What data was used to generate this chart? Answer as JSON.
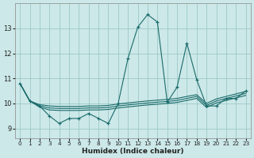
{
  "xlabel": "Humidex (Indice chaleur)",
  "bg_color": "#cce8e8",
  "grid_color": "#9dc8c8",
  "line_color": "#1a6b6b",
  "xlim": [
    -0.5,
    23.5
  ],
  "ylim": [
    8.6,
    14.0
  ],
  "yticks": [
    9,
    10,
    11,
    12,
    13
  ],
  "xticks": [
    0,
    1,
    2,
    3,
    4,
    5,
    6,
    7,
    8,
    9,
    10,
    11,
    12,
    13,
    14,
    15,
    16,
    17,
    18,
    19,
    20,
    21,
    22,
    23
  ],
  "main_x": [
    0,
    1,
    2,
    3,
    4,
    5,
    6,
    7,
    8,
    9,
    10,
    11,
    12,
    13,
    14,
    15,
    16,
    17,
    18,
    19,
    20,
    21,
    22,
    23
  ],
  "main_y": [
    10.8,
    10.1,
    9.9,
    9.5,
    9.2,
    9.4,
    9.4,
    9.6,
    9.4,
    9.2,
    10.0,
    11.8,
    13.05,
    13.55,
    13.25,
    10.05,
    10.65,
    12.4,
    10.95,
    9.9,
    9.9,
    10.2,
    10.2,
    10.5
  ],
  "smooth1_x": [
    0,
    1,
    2,
    3,
    4,
    5,
    6,
    7,
    8,
    9,
    10,
    11,
    12,
    13,
    14,
    15,
    16,
    17,
    18,
    19,
    20,
    21,
    22,
    23
  ],
  "smooth1_y": [
    10.8,
    10.1,
    9.95,
    9.9,
    9.88,
    9.88,
    9.88,
    9.9,
    9.9,
    9.92,
    9.98,
    10.02,
    10.06,
    10.1,
    10.13,
    10.16,
    10.2,
    10.28,
    10.35,
    10.0,
    10.18,
    10.28,
    10.38,
    10.48
  ],
  "smooth2_x": [
    0,
    1,
    2,
    3,
    4,
    5,
    6,
    7,
    8,
    9,
    10,
    11,
    12,
    13,
    14,
    15,
    16,
    17,
    18,
    19,
    20,
    21,
    22,
    23
  ],
  "smooth2_y": [
    10.8,
    10.1,
    9.9,
    9.82,
    9.8,
    9.8,
    9.8,
    9.82,
    9.82,
    9.84,
    9.9,
    9.94,
    9.98,
    10.02,
    10.05,
    10.08,
    10.12,
    10.2,
    10.28,
    9.92,
    10.1,
    10.2,
    10.3,
    10.4
  ],
  "smooth3_x": [
    0,
    1,
    2,
    3,
    4,
    5,
    6,
    7,
    8,
    9,
    10,
    11,
    12,
    13,
    14,
    15,
    16,
    17,
    18,
    19,
    20,
    21,
    22,
    23
  ],
  "smooth3_y": [
    10.8,
    10.1,
    9.85,
    9.74,
    9.72,
    9.72,
    9.72,
    9.74,
    9.74,
    9.76,
    9.82,
    9.86,
    9.9,
    9.94,
    9.97,
    10.0,
    10.04,
    10.12,
    10.2,
    9.84,
    10.02,
    10.12,
    10.22,
    10.32
  ]
}
